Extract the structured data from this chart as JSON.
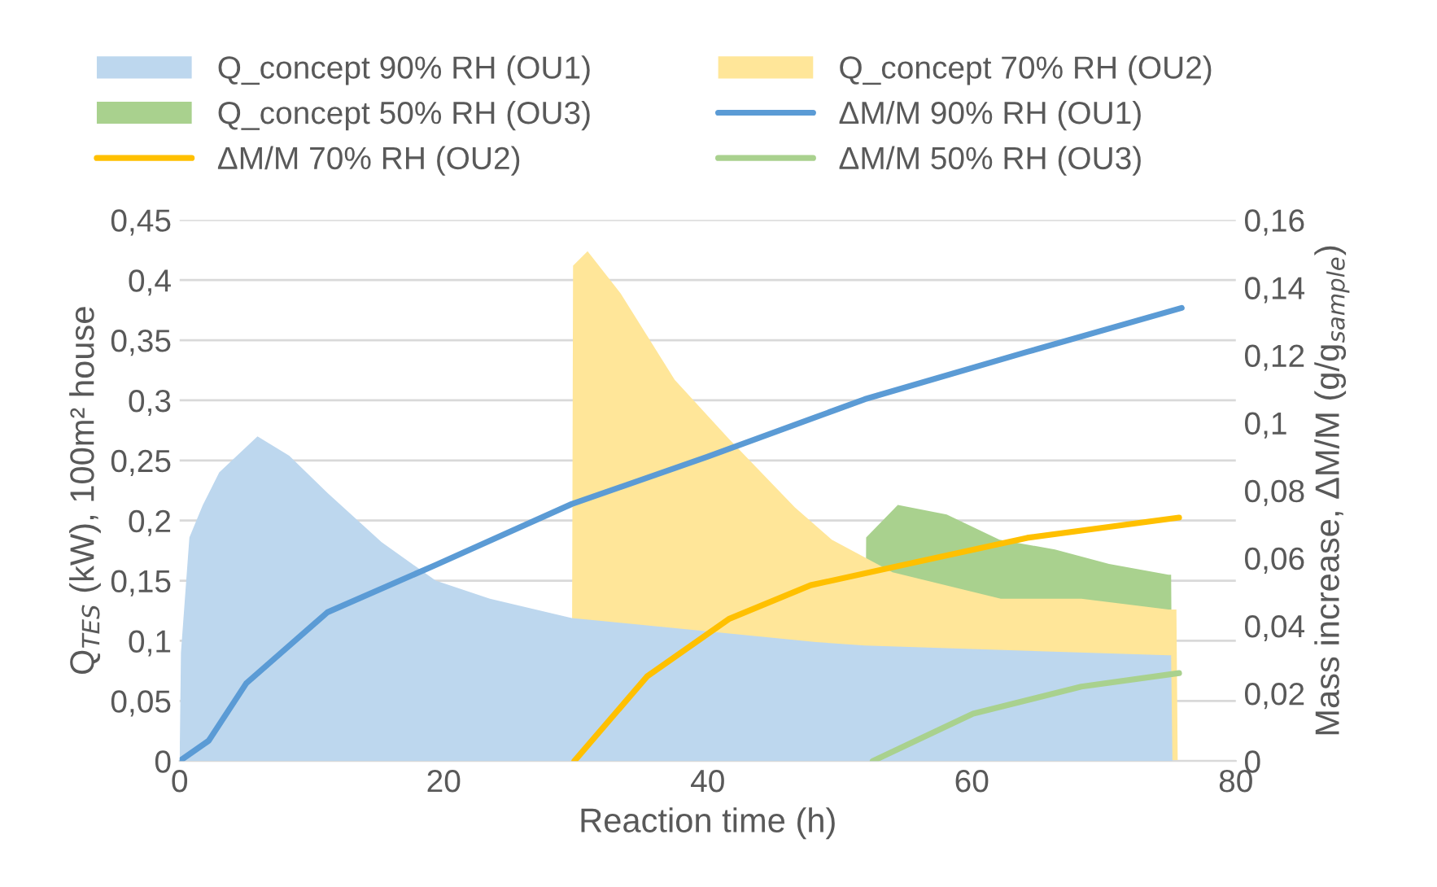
{
  "chart_data": {
    "type": "area",
    "xlabel": "Reaction time (h)",
    "ylabel": "Q$_{TES}$ (kW), 100m² house",
    "y2label": "Mass increase, ΔM/M (g/g$_{sample}$)",
    "xlim": [
      0,
      80
    ],
    "xticks": [
      0,
      20,
      40,
      60,
      80
    ],
    "ylim": [
      0,
      0.45
    ],
    "yticks": [
      0,
      {
        "value": 0.05,
        "label": "0,05"
      },
      {
        "value": 0.1,
        "label": "0,1"
      },
      {
        "value": 0.15,
        "label": "0,15"
      },
      {
        "value": 0.2,
        "label": "0,2"
      },
      {
        "value": 0.25,
        "label": "0,25"
      },
      {
        "value": 0.3,
        "label": "0,3"
      },
      {
        "value": 0.35,
        "label": "0,35"
      },
      {
        "value": 0.4,
        "label": "0,4"
      },
      {
        "value": 0.45,
        "label": "0,45"
      }
    ],
    "y2lim": [
      0,
      0.16
    ],
    "y2ticks": [
      0,
      {
        "value": 0.02,
        "label": "0,02"
      },
      {
        "value": 0.04,
        "label": "0,04"
      },
      {
        "value": 0.06,
        "label": "0,06"
      },
      {
        "value": 0.08,
        "label": "0,08"
      },
      {
        "value": 0.1,
        "label": "0,1"
      },
      {
        "value": 0.12,
        "label": "0,12"
      },
      {
        "value": 0.14,
        "label": "0,14"
      },
      {
        "value": 0.16,
        "label": "0,16"
      }
    ],
    "grid": "y",
    "legend": "top",
    "series": [
      {
        "name": "Q_concept 90% RH (OU1)",
        "color": "#bdd7ee",
        "x": [
          0,
          0.1,
          0.74,
          1.76,
          3.0,
          5.9,
          8.3,
          11.2,
          15.3,
          19.4,
          23.5,
          29.7,
          48.2,
          51.9,
          74.9,
          75.1,
          75.2
        ],
        "values": [
          0,
          0.09,
          0.186,
          0.213,
          0.24,
          0.27,
          0.254,
          0.223,
          0.182,
          0.15,
          0.135,
          0.119,
          0.099,
          0.096,
          0.088,
          0.088,
          0
        ]
      },
      {
        "name": "Q_concept 70% RH (OU2)",
        "color": "#ffe699",
        "x": [
          29.7,
          29.8,
          30.9,
          33.4,
          37.5,
          41.6,
          46.6,
          49.4,
          54,
          62.2,
          68.3,
          74.9,
          75.5,
          75.6
        ],
        "values": [
          0,
          0.412,
          0.424,
          0.389,
          0.317,
          0.268,
          0.211,
          0.184,
          0.157,
          0.135,
          0.135,
          0.126,
          0.126,
          0
        ]
      },
      {
        "name": "Q_concept 50% RH (OU3)",
        "color": "#a9d18e",
        "x": [
          51.9,
          52.0,
          54.4,
          58.1,
          62.1,
          66.3,
          70.4,
          74.9,
          75.1,
          75.2
        ],
        "values": [
          0,
          0.186,
          0.213,
          0.205,
          0.184,
          0.176,
          0.164,
          0.155,
          0.155,
          0
        ]
      },
      {
        "name": "ΔM/M 90% RH (OU1)",
        "type": "line",
        "axis": "y2",
        "color": "#5b9bd5",
        "x": [
          0,
          2.2,
          5.05,
          11.2,
          19.4,
          29.7,
          40,
          51.9,
          64.2,
          75.9
        ],
        "values": [
          0,
          0.006,
          0.023,
          0.044,
          0.058,
          0.076,
          0.09,
          0.107,
          0.121,
          0.134
        ]
      },
      {
        "name": "ΔM/M 70% RH (OU2)",
        "type": "line",
        "axis": "y2",
        "color": "#ffc000",
        "x": [
          29.9,
          35.4,
          41.6,
          47.8,
          56,
          64.2,
          75.7
        ],
        "values": [
          0,
          0.025,
          0.042,
          0.052,
          0.059,
          0.066,
          0.072
        ]
      },
      {
        "name": "ΔM/M 50% RH (OU3)",
        "type": "line",
        "axis": "y2",
        "color": "#a9d18e",
        "x": [
          52.5,
          60.1,
          68.3,
          75.7
        ],
        "values": [
          0,
          0.014,
          0.022,
          0.026
        ]
      }
    ]
  }
}
